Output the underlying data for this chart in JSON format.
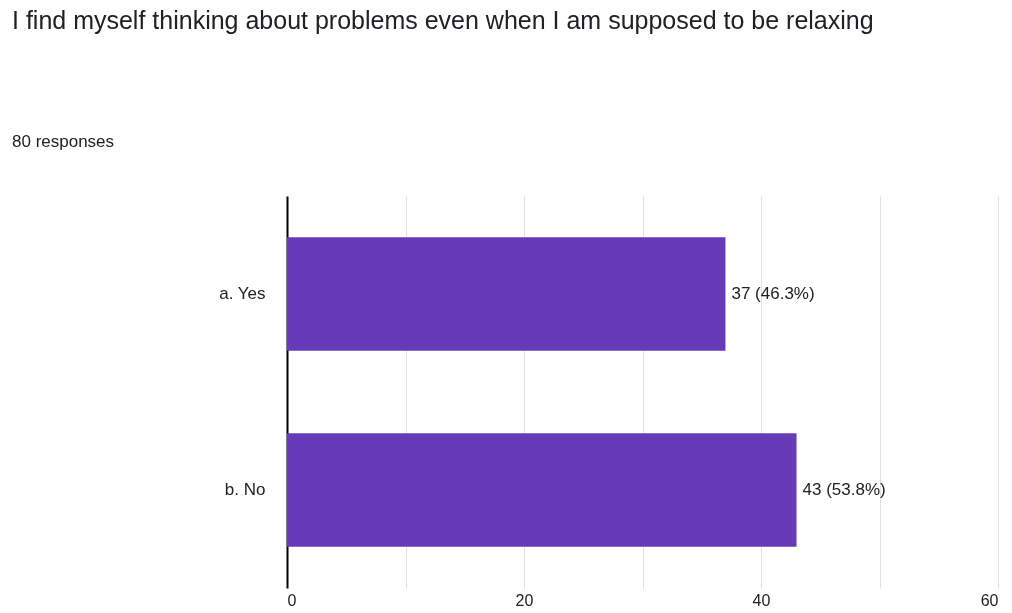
{
  "chart_data": {
    "type": "bar",
    "orientation": "horizontal",
    "title": "I find myself thinking about problems even when I am supposed to be relaxing",
    "subtitle": "80 responses",
    "categories": [
      "a. Yes",
      "b. No"
    ],
    "values": [
      37,
      43
    ],
    "value_labels": [
      "37 (46.3%)",
      "43 (53.8%)"
    ],
    "color": "#673ab7",
    "xlim": [
      0,
      60
    ],
    "xticks": [
      0,
      {
        "value": 10,
        "label": null
      },
      20,
      {
        "value": 30,
        "label": null
      },
      40,
      {
        "value": 50,
        "label": null
      },
      60
    ],
    "grid": true
  }
}
